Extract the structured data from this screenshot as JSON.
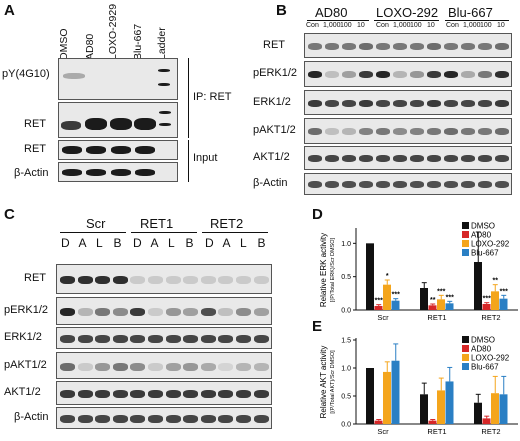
{
  "panels": {
    "a": "A",
    "b": "B",
    "c": "C",
    "d": "D",
    "e": "E"
  },
  "panelA": {
    "lanes": [
      "DMSO",
      "AD80",
      "LOXO-2929",
      "Blu-667",
      "Ladder"
    ],
    "rows": [
      "pY(4G10)",
      "RET",
      "RET",
      "β-Actin"
    ],
    "ip_label": "IP: RET",
    "input_label": "Input"
  },
  "panelB": {
    "groups": [
      "AD80",
      "LOXO-292",
      "Blu-667"
    ],
    "lanes": [
      "Con",
      "1,000",
      "100",
      "10",
      "Con",
      "1,000",
      "100",
      "10",
      "Con",
      "1,000",
      "100",
      "10"
    ],
    "rows": [
      "RET",
      "pERK1/2",
      "ERK1/2",
      "pAKT1/2",
      "AKT1/2",
      "β-Actin"
    ]
  },
  "panelC": {
    "groups": [
      "Scr",
      "RET1",
      "RET2"
    ],
    "lanes": [
      "D",
      "A",
      "L",
      "B",
      "D",
      "A",
      "L",
      "B",
      "D",
      "A",
      "L",
      "B"
    ],
    "rows": [
      "RET",
      "pERK1/2",
      "ERK1/2",
      "pAKT1/2",
      "AKT1/2",
      "β-Actin"
    ]
  },
  "legend": [
    "DMSO",
    "AD80",
    "LOXO-292",
    "Blu-667"
  ],
  "colors": {
    "DMSO": "#111111",
    "AD80": "#d62728",
    "LOXO-292": "#f4a51c",
    "Blu-667": "#2a7fc4"
  },
  "chart_data": [
    {
      "type": "bar",
      "ylabel": "Relative ERK activity",
      "ylabel2": "[(P/Total ERK)/Scr DMSO]",
      "categories": [
        "Scr",
        "RET1",
        "RET2"
      ],
      "ylim": [
        0,
        1.2
      ],
      "yticks": [
        0,
        0.5,
        1.0
      ],
      "series": [
        {
          "name": "DMSO",
          "values": [
            1.0,
            0.33,
            0.72
          ],
          "err": [
            0,
            0.08,
            0.45
          ]
        },
        {
          "name": "AD80",
          "values": [
            0.06,
            0.07,
            0.09
          ],
          "err": [
            0.02,
            0.02,
            0.02
          ]
        },
        {
          "name": "LOXO-292",
          "values": [
            0.38,
            0.16,
            0.28
          ],
          "err": [
            0.07,
            0.06,
            0.1
          ]
        },
        {
          "name": "Blu-667",
          "values": [
            0.14,
            0.1,
            0.17
          ],
          "err": [
            0.03,
            0.03,
            0.05
          ]
        }
      ],
      "stars": [
        [
          "***",
          "*",
          "***"
        ],
        [
          "**",
          "***",
          "***"
        ],
        [
          "***",
          "**",
          "***"
        ]
      ]
    },
    {
      "type": "bar",
      "ylabel": "Relative AKT activity",
      "ylabel2": "[(P/Total AKT)/Scr DMSO]",
      "categories": [
        "Scr",
        "RET1",
        "RET2"
      ],
      "ylim": [
        0,
        1.5
      ],
      "yticks": [
        0,
        0.5,
        1.0,
        1.5
      ],
      "series": [
        {
          "name": "DMSO",
          "values": [
            1.0,
            0.53,
            0.38
          ],
          "err": [
            0,
            0.2,
            0.15
          ]
        },
        {
          "name": "AD80",
          "values": [
            0.06,
            0.06,
            0.1
          ],
          "err": [
            0.02,
            0.02,
            0.04
          ]
        },
        {
          "name": "LOXO-292",
          "values": [
            0.93,
            0.6,
            0.55
          ],
          "err": [
            0.18,
            0.22,
            0.3
          ]
        },
        {
          "name": "Blu-667",
          "values": [
            1.13,
            0.76,
            0.53
          ],
          "err": [
            0.3,
            0.25,
            0.32
          ]
        }
      ]
    }
  ]
}
